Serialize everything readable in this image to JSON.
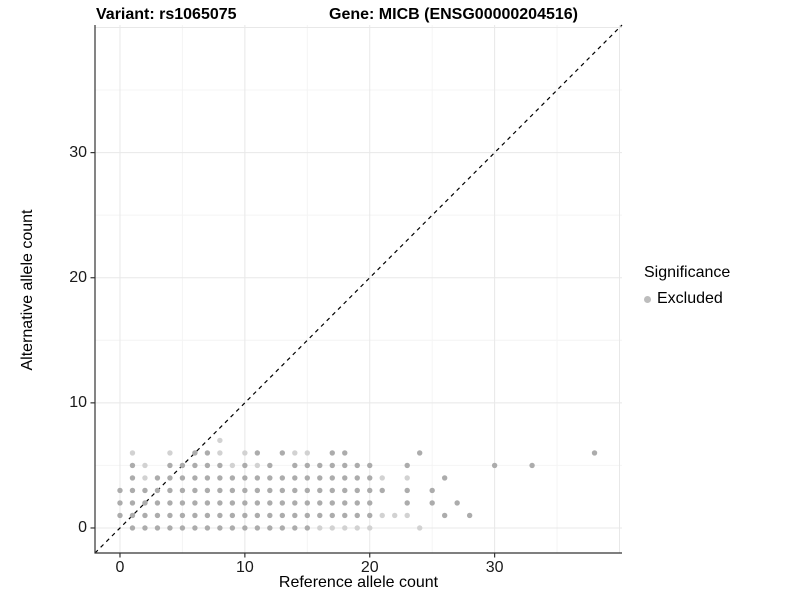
{
  "figure": {
    "background": "#ffffff",
    "axis_color": "#333333",
    "tick_label_color": "#1a1a1a"
  },
  "chart_data": {
    "type": "scatter",
    "titles": {
      "left": "Variant: rs1065075",
      "right": "Gene: MICB (ENSG00000204516)"
    },
    "xlabel": "Reference allele count",
    "ylabel": "Alternative allele count",
    "xlim": [
      -2,
      40.2
    ],
    "ylim": [
      -2,
      40.2
    ],
    "x_ticks": [
      0,
      10,
      20,
      30
    ],
    "y_ticks": [
      0,
      10,
      20,
      30
    ],
    "grid": {
      "major": [
        0,
        10,
        20,
        30,
        40
      ],
      "minor": [
        5,
        15,
        25,
        35
      ],
      "major_color": "#e8e8e8",
      "minor_color": "#f4f4f4"
    },
    "identity_line": {
      "style": "dashed",
      "color": "#000000",
      "from": [
        -2,
        -2
      ],
      "to": [
        40.2,
        40.2
      ]
    },
    "legend": {
      "title": "Significance",
      "position": "right",
      "items": [
        {
          "label": "Excluded",
          "color": "#bdbdbd"
        }
      ]
    },
    "point_style": {
      "radius": 2.7,
      "colors": {
        "light": "#d2d2d2",
        "normal": "#acacac"
      }
    },
    "points": [
      [
        1,
        0,
        1
      ],
      [
        2,
        0,
        1
      ],
      [
        3,
        0,
        1
      ],
      [
        4,
        0,
        1
      ],
      [
        5,
        0,
        1
      ],
      [
        6,
        0,
        1
      ],
      [
        7,
        0,
        1
      ],
      [
        8,
        0,
        1
      ],
      [
        9,
        0,
        1
      ],
      [
        10,
        0,
        1
      ],
      [
        11,
        0,
        1
      ],
      [
        12,
        0,
        1
      ],
      [
        13,
        0,
        1
      ],
      [
        14,
        0,
        1
      ],
      [
        15,
        0,
        1
      ],
      [
        16,
        0,
        0
      ],
      [
        17,
        0,
        0
      ],
      [
        18,
        0,
        0
      ],
      [
        19,
        0,
        0
      ],
      [
        20,
        0,
        0
      ],
      [
        24,
        0,
        0
      ],
      [
        0,
        1,
        1
      ],
      [
        1,
        1,
        1
      ],
      [
        2,
        1,
        1
      ],
      [
        3,
        1,
        1
      ],
      [
        4,
        1,
        1
      ],
      [
        5,
        1,
        1
      ],
      [
        6,
        1,
        1
      ],
      [
        7,
        1,
        1
      ],
      [
        8,
        1,
        1
      ],
      [
        9,
        1,
        1
      ],
      [
        10,
        1,
        1
      ],
      [
        11,
        1,
        1
      ],
      [
        12,
        1,
        1
      ],
      [
        13,
        1,
        1
      ],
      [
        14,
        1,
        1
      ],
      [
        15,
        1,
        1
      ],
      [
        16,
        1,
        1
      ],
      [
        17,
        1,
        1
      ],
      [
        18,
        1,
        1
      ],
      [
        19,
        1,
        1
      ],
      [
        20,
        1,
        1
      ],
      [
        21,
        1,
        0
      ],
      [
        22,
        1,
        0
      ],
      [
        23,
        1,
        0
      ],
      [
        26,
        1,
        1
      ],
      [
        28,
        1,
        1
      ],
      [
        0,
        2,
        1
      ],
      [
        1,
        2,
        1
      ],
      [
        2,
        2,
        1
      ],
      [
        3,
        2,
        1
      ],
      [
        4,
        2,
        1
      ],
      [
        5,
        2,
        1
      ],
      [
        6,
        2,
        1
      ],
      [
        7,
        2,
        1
      ],
      [
        8,
        2,
        1
      ],
      [
        9,
        2,
        1
      ],
      [
        10,
        2,
        1
      ],
      [
        11,
        2,
        1
      ],
      [
        12,
        2,
        1
      ],
      [
        13,
        2,
        1
      ],
      [
        14,
        2,
        1
      ],
      [
        15,
        2,
        1
      ],
      [
        16,
        2,
        1
      ],
      [
        17,
        2,
        1
      ],
      [
        18,
        2,
        1
      ],
      [
        19,
        2,
        1
      ],
      [
        20,
        2,
        1
      ],
      [
        23,
        2,
        1
      ],
      [
        25,
        2,
        1
      ],
      [
        27,
        2,
        1
      ],
      [
        0,
        3,
        1
      ],
      [
        1,
        3,
        1
      ],
      [
        2,
        3,
        1
      ],
      [
        3,
        3,
        1
      ],
      [
        4,
        3,
        1
      ],
      [
        5,
        3,
        1
      ],
      [
        6,
        3,
        1
      ],
      [
        7,
        3,
        1
      ],
      [
        8,
        3,
        1
      ],
      [
        9,
        3,
        1
      ],
      [
        10,
        3,
        1
      ],
      [
        11,
        3,
        1
      ],
      [
        12,
        3,
        1
      ],
      [
        13,
        3,
        1
      ],
      [
        14,
        3,
        1
      ],
      [
        15,
        3,
        1
      ],
      [
        16,
        3,
        1
      ],
      [
        17,
        3,
        1
      ],
      [
        18,
        3,
        1
      ],
      [
        19,
        3,
        1
      ],
      [
        20,
        3,
        1
      ],
      [
        21,
        3,
        1
      ],
      [
        23,
        3,
        1
      ],
      [
        25,
        3,
        1
      ],
      [
        1,
        4,
        1
      ],
      [
        2,
        4,
        0
      ],
      [
        3,
        4,
        1
      ],
      [
        4,
        4,
        1
      ],
      [
        5,
        4,
        1
      ],
      [
        6,
        4,
        1
      ],
      [
        7,
        4,
        1
      ],
      [
        8,
        4,
        1
      ],
      [
        9,
        4,
        1
      ],
      [
        10,
        4,
        1
      ],
      [
        11,
        4,
        1
      ],
      [
        12,
        4,
        1
      ],
      [
        13,
        4,
        1
      ],
      [
        14,
        4,
        1
      ],
      [
        15,
        4,
        1
      ],
      [
        16,
        4,
        1
      ],
      [
        17,
        4,
        1
      ],
      [
        18,
        4,
        1
      ],
      [
        19,
        4,
        1
      ],
      [
        20,
        4,
        1
      ],
      [
        21,
        4,
        0
      ],
      [
        23,
        4,
        0
      ],
      [
        26,
        4,
        1
      ],
      [
        1,
        5,
        1
      ],
      [
        2,
        5,
        0
      ],
      [
        4,
        5,
        1
      ],
      [
        5,
        5,
        1
      ],
      [
        6,
        5,
        1
      ],
      [
        7,
        5,
        1
      ],
      [
        8,
        5,
        1
      ],
      [
        9,
        5,
        0
      ],
      [
        10,
        5,
        1
      ],
      [
        11,
        5,
        0
      ],
      [
        12,
        5,
        1
      ],
      [
        14,
        5,
        1
      ],
      [
        15,
        5,
        1
      ],
      [
        16,
        5,
        1
      ],
      [
        17,
        5,
        1
      ],
      [
        18,
        5,
        1
      ],
      [
        19,
        5,
        1
      ],
      [
        20,
        5,
        1
      ],
      [
        23,
        5,
        1
      ],
      [
        30,
        5,
        1
      ],
      [
        33,
        5,
        1
      ],
      [
        1,
        6,
        0
      ],
      [
        4,
        6,
        0
      ],
      [
        6,
        6,
        1
      ],
      [
        7,
        6,
        1
      ],
      [
        8,
        6,
        0
      ],
      [
        10,
        6,
        0
      ],
      [
        11,
        6,
        1
      ],
      [
        13,
        6,
        1
      ],
      [
        14,
        6,
        0
      ],
      [
        15,
        6,
        0
      ],
      [
        17,
        6,
        1
      ],
      [
        18,
        6,
        1
      ],
      [
        24,
        6,
        1
      ],
      [
        38,
        6,
        1
      ],
      [
        8,
        7,
        0
      ]
    ]
  }
}
